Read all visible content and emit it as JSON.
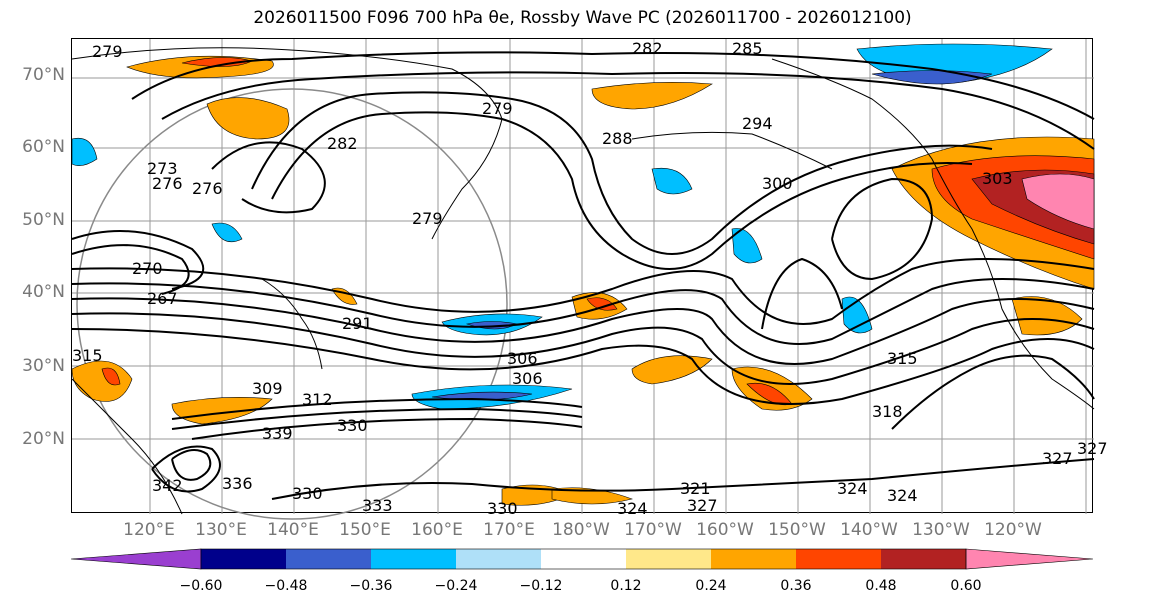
{
  "title": "2026011500 F096 700 hPa θe, Rossby Wave PC (2026011700 - 2026012100)",
  "map": {
    "lat_labels": [
      "70°N",
      "60°N",
      "50°N",
      "40°N",
      "30°N",
      "20°N"
    ],
    "lon_labels": [
      "120°E",
      "130°E",
      "140°E",
      "150°E",
      "160°E",
      "170°E",
      "180°W",
      "170°W",
      "160°W",
      "150°W",
      "140°W",
      "130°W",
      "120°W"
    ],
    "contour_labels": [
      "279",
      "276",
      "282",
      "285",
      "288",
      "294",
      "279",
      "282",
      "279",
      "276",
      "273",
      "270",
      "267",
      "291",
      "306",
      "306",
      "309",
      "312",
      "315",
      "318",
      "330",
      "339",
      "336",
      "342",
      "330",
      "333",
      "330",
      "324",
      "321",
      "327",
      "324",
      "324",
      "327",
      "327",
      "315",
      "303",
      "300"
    ]
  },
  "colorbar": {
    "ticks": [
      "−0.60",
      "−0.48",
      "−0.36",
      "−0.24",
      "−0.12",
      "0.12",
      "0.24",
      "0.36",
      "0.48",
      "0.60"
    ],
    "colors": [
      "#9a3fd0",
      "#00008b",
      "#3a5fcd",
      "#00bfff",
      "#afe0f8",
      "#ffffff",
      "#ffe88a",
      "#ffa500",
      "#ff4500",
      "#b22222",
      "#ff85b0"
    ]
  }
}
